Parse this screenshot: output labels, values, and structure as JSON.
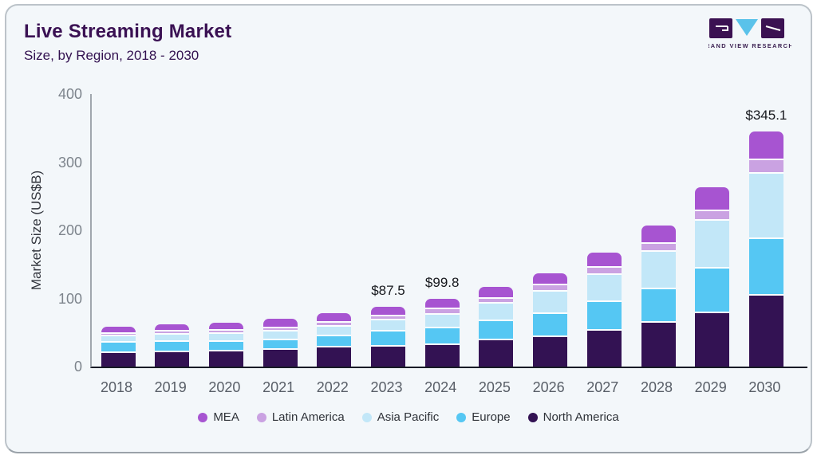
{
  "header": {
    "title": "Live Streaming Market",
    "subtitle": "Size, by Region, 2018 - 2030"
  },
  "logo": {
    "text": "GRAND VIEW RESEARCH",
    "purple": "#3b1152",
    "blue": "#5ac2ea"
  },
  "colors": {
    "card_bg": "#f3f7fa",
    "title_text": "#3a1153",
    "x_axis_line": "#181b26",
    "y_axis_line": "#a0a7ae",
    "tick_text": "#7d848c",
    "xlabel_text": "#585e67"
  },
  "chart_data": {
    "type": "bar",
    "stacked": true,
    "title": "Live Streaming Market",
    "subtitle": "Size, by Region, 2018 - 2030",
    "xlabel": "",
    "ylabel": "Market Size (US$B)",
    "ylim": [
      0,
      400
    ],
    "yticks": [
      0,
      100,
      200,
      300,
      400
    ],
    "grid": false,
    "legend_position": "bottom",
    "categories": [
      "2018",
      "2019",
      "2020",
      "2021",
      "2022",
      "2023",
      "2024",
      "2025",
      "2026",
      "2027",
      "2028",
      "2029",
      "2030"
    ],
    "series": [
      {
        "name": "North America",
        "color": "#331253",
        "values": [
          20.2,
          21.0,
          21.9,
          24.3,
          27.6,
          28.9,
          31.3,
          38.3,
          43.8,
          52.8,
          64.1,
          78.0,
          104.0
        ]
      },
      {
        "name": "Europe",
        "color": "#55c7f3",
        "values": [
          14.7,
          14.8,
          14.7,
          13.9,
          16.5,
          22.4,
          25.4,
          27.9,
          33.8,
          41.5,
          49.7,
          66.3,
          83.0
        ]
      },
      {
        "name": "Asia Pacific",
        "color": "#c2e7f8",
        "values": [
          9.7,
          11.2,
          11.9,
          13.6,
          14.9,
          16.6,
          19.6,
          25.8,
          32.8,
          40.7,
          54.4,
          70.2,
          95.5
        ]
      },
      {
        "name": "Latin America",
        "color": "#caa2e2",
        "values": [
          3.9,
          4.2,
          4.6,
          4.7,
          5.3,
          6.1,
          7.6,
          7.9,
          8.6,
          9.7,
          11.6,
          13.7,
          20.2
        ]
      },
      {
        "name": "MEA",
        "color": "#a754d1",
        "values": [
          9.6,
          10.3,
          11.5,
          13.8,
          14.6,
          13.5,
          15.9,
          17.2,
          18.2,
          22.2,
          27.2,
          35.1,
          42.4
        ]
      }
    ],
    "totals_labels": {
      "2023": "$87.5",
      "2024": "$99.8",
      "2030": "$345.1"
    }
  }
}
